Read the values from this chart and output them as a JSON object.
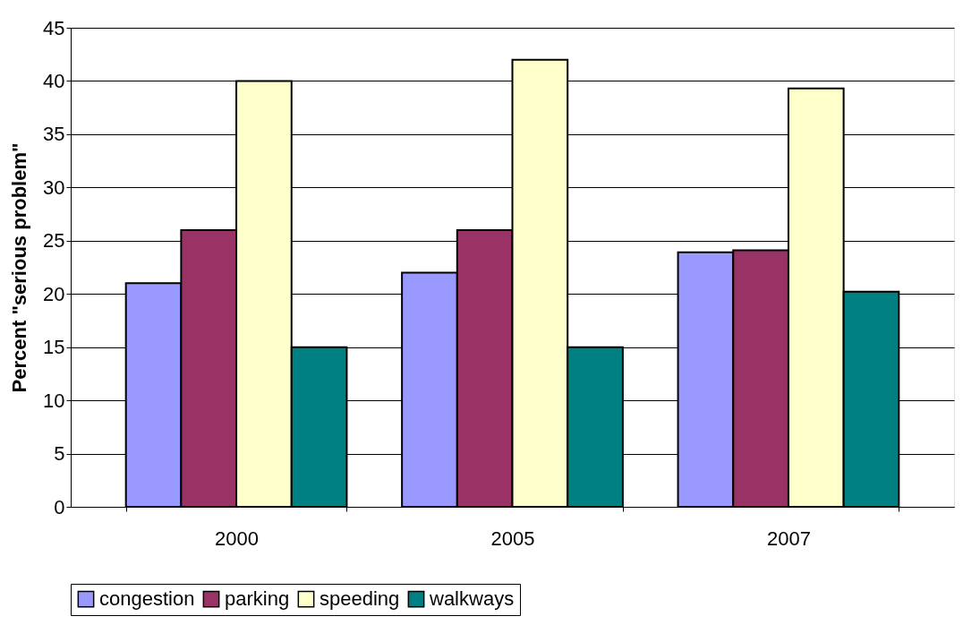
{
  "chart_data": {
    "type": "bar",
    "ylabel": "Percent \"serious problem\"",
    "categories": [
      "2000",
      "2005",
      "2007"
    ],
    "series": [
      {
        "name": "congestion",
        "color": "#9999ff",
        "values": [
          21,
          22,
          23.9
        ]
      },
      {
        "name": "parking",
        "color": "#993366",
        "values": [
          26,
          26,
          24.1
        ]
      },
      {
        "name": "speeding",
        "color": "#ffffcc",
        "values": [
          40,
          42,
          39.3
        ]
      },
      {
        "name": "walkways",
        "color": "#008080",
        "values": [
          15,
          15,
          20.2
        ]
      }
    ],
    "ylim": [
      0,
      45
    ],
    "yticks": [
      0,
      5,
      10,
      15,
      20,
      25,
      30,
      35,
      40,
      45
    ],
    "grid": "y",
    "legend": "bottom"
  }
}
